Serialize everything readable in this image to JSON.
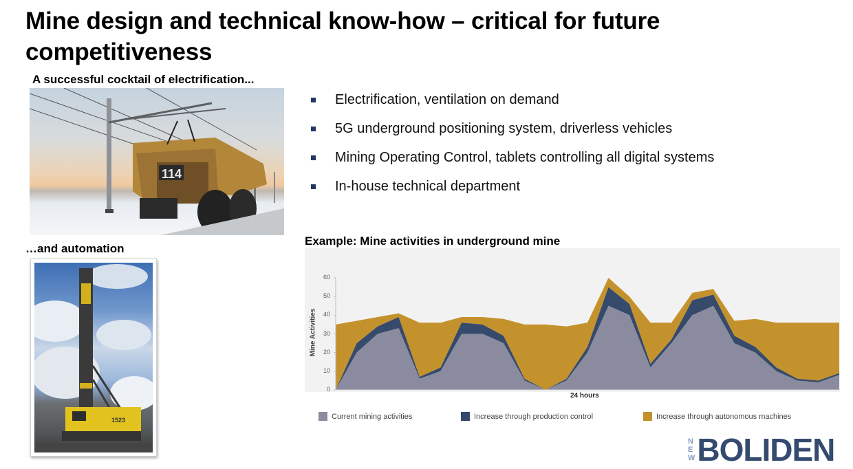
{
  "slide": {
    "title": "Mine design and technical know-how – critical for future competitiveness",
    "caption_electrification": "A successful cocktail of electrification...",
    "caption_automation": "…and automation",
    "bullets": [
      "Electrification, ventilation on demand",
      "5G underground positioning system, driverless vehicles",
      "Mining Operating Control, tablets controlling all digital systems",
      "In-house technical department"
    ],
    "images": {
      "truck": {
        "description": "Electric-trolley haul truck 114 under overhead power lines in snowy open-pit mine",
        "truck_number": "114"
      },
      "drill_rig": {
        "description": "Yellow drill rig with tall mast under blue cloudy sky",
        "rig_number": "1523"
      }
    },
    "logo": {
      "prefix": [
        "N",
        "E",
        "W"
      ],
      "name": "BOLIDEN"
    }
  },
  "colors": {
    "current": "#8a8b9f",
    "production_control": "#364a6b",
    "autonomous": "#c4922c",
    "plot_bg": "#f2f2f2",
    "bullet": "#1f3864",
    "logo_dark": "#344a6e",
    "logo_light": "#7f9dbf"
  },
  "chart_data": {
    "type": "area",
    "stacked": true,
    "title": "Example: Mine activities in underground mine",
    "xlabel": "24 hours",
    "ylabel": "Mine Activities",
    "ylim": [
      0,
      60
    ],
    "yticks": [
      0,
      10,
      20,
      30,
      40,
      50,
      60
    ],
    "grid": false,
    "legend_position": "bottom",
    "x": [
      0,
      1,
      2,
      3,
      4,
      5,
      6,
      7,
      8,
      9,
      10,
      11,
      12,
      13,
      14,
      15,
      16,
      17,
      18,
      19,
      20,
      21,
      22,
      23,
      24
    ],
    "series": [
      {
        "name": "Current mining activities",
        "values": [
          0,
          20,
          30,
          33,
          6,
          10,
          30,
          30,
          25,
          5,
          0,
          5,
          20,
          45,
          40,
          12,
          25,
          40,
          45,
          25,
          20,
          10,
          5,
          4,
          8
        ]
      },
      {
        "name": "Increase through production control",
        "values": [
          0,
          5,
          4,
          6,
          1,
          2,
          6,
          5,
          4,
          1,
          0,
          1,
          3,
          10,
          6,
          2,
          2,
          8,
          6,
          4,
          3,
          2,
          1,
          1,
          1
        ]
      },
      {
        "name": "Increase through autonomous machines",
        "values": [
          35,
          12,
          5,
          2,
          29,
          24,
          3,
          4,
          9,
          29,
          35,
          28,
          13,
          5,
          4,
          22,
          9,
          4,
          3,
          8,
          15,
          24,
          30,
          31,
          27
        ]
      }
    ],
    "legend": [
      "Current mining activities",
      "Increase through production control",
      "Increase through autonomous machines"
    ]
  }
}
